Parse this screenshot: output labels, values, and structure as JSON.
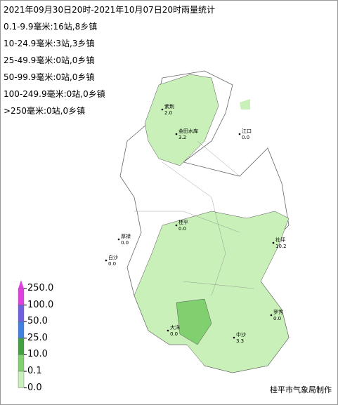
{
  "title": "2021年09月30日20时-2021年10月07日20时雨量统计",
  "stats": [
    "0.1-9.9毫米:16站,8乡镇",
    "10-24.9毫米:3站,3乡镇",
    "25-49.9毫米:0站,0乡镇",
    "50-99.9毫米:0站,0乡镇",
    "100-249.9毫米:0站,0乡镇",
    ">250毫米:0站,0乡镇"
  ],
  "legend": {
    "labels": [
      "250.0",
      "100.0",
      "50.0",
      "25.0",
      "10.0",
      "0.1",
      "0.0"
    ],
    "colors": [
      "#e040e0",
      "#7060e0",
      "#4080e0",
      "#40a040",
      "#80d070",
      "#c8f0b8"
    ]
  },
  "stations": [
    {
      "name": "紫荆",
      "value": "2.0"
    },
    {
      "name": "金田水库",
      "value": "3.2"
    },
    {
      "name": "江口",
      "value": "0.0"
    },
    {
      "name": "社坪",
      "value": "10.2"
    },
    {
      "name": "厚禄",
      "value": "0.0"
    },
    {
      "name": "白沙",
      "value": "0.0"
    },
    {
      "name": "大洋",
      "value": "0.0"
    },
    {
      "name": "罗秀",
      "value": "0.0"
    },
    {
      "name": "中沙",
      "value": "3.3"
    },
    {
      "name": "桂平",
      "value": "0.0"
    }
  ],
  "footer": "桂平市气象局制作"
}
